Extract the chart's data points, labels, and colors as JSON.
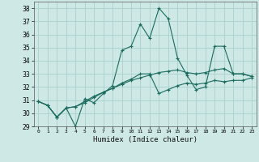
{
  "xlabel": "Humidex (Indice chaleur)",
  "background_color": "#cde8e5",
  "grid_color": "#aacfcc",
  "line_color": "#1a6b5e",
  "xlim": [
    -0.5,
    23.5
  ],
  "ylim": [
    29,
    38.5
  ],
  "yticks": [
    29,
    30,
    31,
    32,
    33,
    34,
    35,
    36,
    37,
    38
  ],
  "xtick_labels": [
    "0",
    "1",
    "2",
    "3",
    "4",
    "5",
    "6",
    "7",
    "8",
    "9",
    "10",
    "11",
    "12",
    "13",
    "14",
    "15",
    "16",
    "17",
    "18",
    "19",
    "20",
    "21",
    "22",
    "23"
  ],
  "series": [
    [
      30.9,
      30.6,
      29.7,
      30.4,
      29.0,
      31.1,
      30.8,
      31.5,
      32.1,
      34.8,
      35.1,
      36.8,
      35.7,
      38.0,
      37.2,
      34.2,
      32.9,
      31.8,
      32.0,
      35.1,
      35.1,
      33.0,
      33.0,
      32.8
    ],
    [
      30.9,
      30.6,
      29.7,
      30.4,
      30.5,
      30.8,
      31.2,
      31.6,
      31.9,
      32.3,
      32.6,
      33.0,
      33.0,
      31.5,
      31.8,
      32.1,
      32.3,
      32.2,
      32.3,
      32.5,
      32.4,
      32.5,
      32.5,
      32.7
    ],
    [
      30.9,
      30.6,
      29.7,
      30.4,
      30.5,
      30.9,
      31.3,
      31.6,
      31.9,
      32.2,
      32.5,
      32.7,
      32.9,
      33.1,
      33.2,
      33.3,
      33.1,
      33.0,
      33.1,
      33.3,
      33.4,
      33.0,
      33.0,
      32.8
    ]
  ]
}
